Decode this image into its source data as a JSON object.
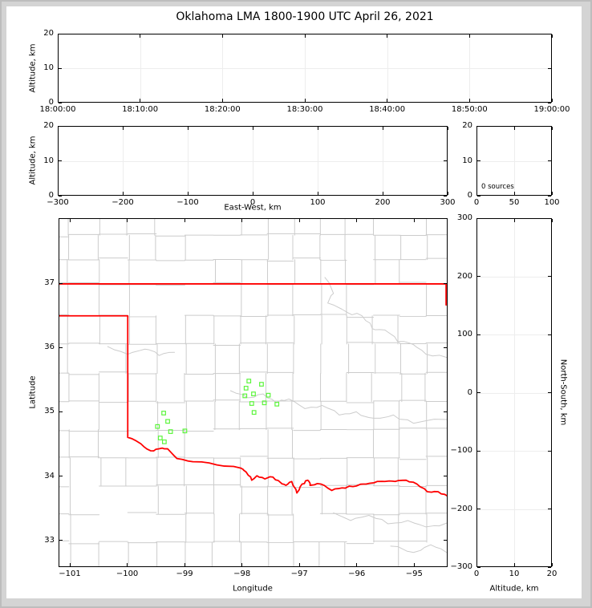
{
  "title": "Oklahoma LMA 1800-1900 UTC April 26, 2021",
  "colors": {
    "state_border": "#ff0000",
    "county": "#cccccc",
    "station": "#5cf53c",
    "grid": "#ededed",
    "frame": "#bdbdbd",
    "window_bg": "#d4d4d4",
    "canvas_bg": "#ffffff"
  },
  "panels": {
    "time_altitude": {
      "ylabel": "Altitude, km",
      "xlim": [
        0,
        60
      ],
      "ylim": [
        0,
        20
      ],
      "xtick_vals": [
        0,
        10,
        20,
        30,
        40,
        50,
        60
      ],
      "xtick_labels": [
        "18:00:00",
        "18:10:00",
        "18:20:00",
        "18:30:00",
        "18:40:00",
        "18:50:00",
        "19:00:00"
      ],
      "ytick_vals": [
        0,
        10,
        20
      ],
      "ytick_labels": [
        "0",
        "10",
        "20"
      ],
      "grid": true
    },
    "ew_altitude": {
      "xlabel": "East-West, km",
      "ylabel": "Altitude, km",
      "xlim": [
        -300,
        300
      ],
      "ylim": [
        0,
        20
      ],
      "xtick_vals": [
        -300,
        -200,
        -100,
        0,
        100,
        200,
        300
      ],
      "xtick_labels": [
        "−300",
        "−200",
        "−100",
        "0",
        "100",
        "200",
        "300"
      ],
      "ytick_vals": [
        0,
        10,
        20
      ],
      "ytick_labels": [
        "0",
        "10",
        "20"
      ],
      "grid": true
    },
    "alt_histogram": {
      "annotation": "0 sources",
      "xlim": [
        0,
        100
      ],
      "ylim": [
        0,
        20
      ],
      "xtick_vals": [
        0,
        50,
        100
      ],
      "xtick_labels": [
        "0",
        "50",
        "100"
      ],
      "ytick_vals": [
        0,
        10,
        20
      ],
      "ytick_labels": [
        "0",
        "10",
        "20"
      ],
      "grid": true
    },
    "map": {
      "xlabel": "Longitude",
      "ylabel": "Latitude",
      "xlim": [
        -101.196,
        -94.417
      ],
      "ylim": [
        32.584,
        38.015
      ],
      "xtick_vals": [
        -101,
        -100,
        -99,
        -98,
        -97,
        -96,
        -95
      ],
      "xtick_labels": [
        "−101",
        "−100",
        "−99",
        "−98",
        "−97",
        "−96",
        "−95"
      ],
      "ytick_vals": [
        37,
        36,
        35,
        34,
        33
      ],
      "ytick_labels": [
        "37",
        "36",
        "35",
        "34",
        "33"
      ],
      "grid": false
    },
    "ns_altitude": {
      "xlabel": "Altitude, km",
      "ylabel_right": "North-South, km",
      "xlim": [
        0,
        20
      ],
      "ylim": [
        -300,
        300
      ],
      "xtick_vals": [
        0,
        10,
        20
      ],
      "xtick_labels": [
        "0",
        "10",
        "20"
      ],
      "ytick_vals": [
        300,
        200,
        100,
        0,
        -100,
        -200,
        -300
      ],
      "ytick_labels": [
        "300",
        "200",
        "100",
        "0",
        "−100",
        "−200",
        "−300"
      ],
      "grid": true
    }
  },
  "map_geo": {
    "county_color": "#cccccc",
    "county_lat_lines": [
      37.76,
      37.38,
      37.0,
      36.5,
      36.06,
      35.6,
      35.16,
      34.72,
      34.28,
      33.84,
      33.4,
      32.96
    ],
    "county_lon_lines": [
      -101.03,
      -100.5,
      -100.0,
      -99.5,
      -99.0,
      -98.5,
      -98.03,
      -97.56,
      -97.1,
      -96.63,
      -96.17,
      -95.7,
      -95.24,
      -94.78
    ],
    "state_border": [
      [
        [
          -101.196,
          37.0
        ],
        [
          -94.417,
          37.0
        ]
      ],
      [
        [
          -94.43,
          37.0
        ],
        [
          -94.43,
          36.67
        ]
      ],
      [
        [
          -101.196,
          36.5
        ],
        [
          -100.0,
          36.5
        ]
      ],
      [
        [
          -100.0,
          36.5
        ],
        [
          -100.0,
          34.6
        ]
      ]
    ],
    "red_river": [
      [
        -100.0,
        34.6
      ],
      [
        -99.77,
        34.5
      ],
      [
        -99.6,
        34.39
      ],
      [
        -99.46,
        34.42
      ],
      [
        -99.3,
        34.42
      ],
      [
        -99.14,
        34.27
      ],
      [
        -98.86,
        34.22
      ],
      [
        -98.44,
        34.17
      ],
      [
        -98.02,
        34.12
      ],
      [
        -97.93,
        34.06
      ],
      [
        -97.83,
        33.93
      ],
      [
        -97.74,
        34.0
      ],
      [
        -97.6,
        33.95
      ],
      [
        -97.46,
        33.98
      ],
      [
        -97.32,
        33.89
      ],
      [
        -97.23,
        33.85
      ],
      [
        -97.13,
        33.91
      ],
      [
        -97.04,
        33.73
      ],
      [
        -96.95,
        33.87
      ],
      [
        -96.85,
        33.93
      ],
      [
        -96.81,
        33.85
      ],
      [
        -96.62,
        33.87
      ],
      [
        -96.43,
        33.77
      ],
      [
        -96.25,
        33.81
      ],
      [
        -96.06,
        33.83
      ],
      [
        -95.88,
        33.87
      ],
      [
        -95.69,
        33.89
      ],
      [
        -95.5,
        33.91
      ],
      [
        -95.32,
        33.91
      ],
      [
        -95.13,
        33.93
      ],
      [
        -94.94,
        33.87
      ],
      [
        -94.76,
        33.75
      ],
      [
        -94.57,
        33.75
      ],
      [
        -94.4,
        33.68
      ]
    ],
    "rivers": [
      [
        [
          -96.55,
          37.1
        ],
        [
          -96.4,
          36.85
        ],
        [
          -96.5,
          36.7
        ],
        [
          -96.15,
          36.55
        ],
        [
          -95.9,
          36.5
        ],
        [
          -95.72,
          36.3
        ],
        [
          -95.5,
          36.28
        ],
        [
          -95.28,
          36.1
        ],
        [
          -95.0,
          36.05
        ],
        [
          -94.78,
          35.9
        ],
        [
          -94.42,
          35.85
        ]
      ],
      [
        [
          -98.2,
          35.33
        ],
        [
          -97.9,
          35.22
        ],
        [
          -97.63,
          35.28
        ],
        [
          -97.4,
          35.14
        ],
        [
          -97.18,
          35.2
        ],
        [
          -96.9,
          35.05
        ],
        [
          -96.6,
          35.1
        ],
        [
          -96.3,
          34.95
        ],
        [
          -96.0,
          35.0
        ],
        [
          -95.7,
          34.9
        ],
        [
          -95.35,
          34.95
        ],
        [
          -95.0,
          34.82
        ],
        [
          -94.42,
          34.88
        ]
      ],
      [
        [
          -100.35,
          36.02
        ],
        [
          -100.0,
          35.9
        ],
        [
          -99.7,
          35.98
        ],
        [
          -99.45,
          35.88
        ],
        [
          -99.18,
          35.93
        ]
      ],
      [
        [
          -96.4,
          33.42
        ],
        [
          -96.1,
          33.3
        ],
        [
          -95.78,
          33.38
        ],
        [
          -95.45,
          33.25
        ],
        [
          -95.1,
          33.3
        ],
        [
          -94.78,
          33.2
        ],
        [
          -94.42,
          33.26
        ]
      ],
      [
        [
          -95.4,
          32.9
        ],
        [
          -95.0,
          32.8
        ],
        [
          -94.7,
          32.92
        ],
        [
          -94.42,
          32.8
        ]
      ]
    ]
  },
  "chart_data": [
    {
      "id": "time-altitude",
      "type": "scatter",
      "xlabel": "",
      "ylabel": "Altitude, km",
      "xtick_labels": [
        "18:00:00",
        "18:10:00",
        "18:20:00",
        "18:30:00",
        "18:40:00",
        "18:50:00",
        "19:00:00"
      ],
      "ylim": [
        0,
        20
      ],
      "yticks": [
        0,
        10,
        20
      ],
      "points": []
    },
    {
      "id": "ew-altitude",
      "type": "scatter",
      "xlabel": "East-West, km",
      "ylabel": "Altitude, km",
      "xlim": [
        -300,
        300
      ],
      "xticks": [
        -300,
        -200,
        -100,
        0,
        100,
        200,
        300
      ],
      "ylim": [
        0,
        20
      ],
      "yticks": [
        0,
        10,
        20
      ],
      "points": []
    },
    {
      "id": "altitude-histogram",
      "type": "line",
      "xlabel": "",
      "ylabel": "",
      "xlim": [
        0,
        100
      ],
      "xticks": [
        0,
        50,
        100
      ],
      "ylim": [
        0,
        20
      ],
      "yticks": [
        0,
        10,
        20
      ],
      "annotation": "0 sources",
      "source_count": 0,
      "points": []
    },
    {
      "id": "plan-view-map",
      "type": "scatter",
      "xlabel": "Longitude",
      "ylabel": "Latitude",
      "xlim": [
        -101.196,
        -94.417
      ],
      "xticks": [
        -101,
        -100,
        -99,
        -98,
        -97,
        -96,
        -95
      ],
      "ylim": [
        32.584,
        38.015
      ],
      "yticks": [
        33,
        34,
        35,
        36,
        37
      ],
      "series": [
        {
          "name": "lma-stations",
          "marker": "open-square",
          "color": "#5cf53c",
          "points": [
            [
              -97.88,
              35.48
            ],
            [
              -97.66,
              35.43
            ],
            [
              -97.93,
              35.37
            ],
            [
              -97.8,
              35.28
            ],
            [
              -97.95,
              35.25
            ],
            [
              -97.54,
              35.26
            ],
            [
              -97.83,
              35.13
            ],
            [
              -97.61,
              35.14
            ],
            [
              -97.39,
              35.12
            ],
            [
              -97.79,
              34.99
            ],
            [
              -99.37,
              34.98
            ],
            [
              -99.3,
              34.85
            ],
            [
              -99.48,
              34.77
            ],
            [
              -99.25,
              34.69
            ],
            [
              -99.0,
              34.7
            ],
            [
              -99.43,
              34.59
            ],
            [
              -99.36,
              34.53
            ]
          ]
        }
      ]
    },
    {
      "id": "ns-altitude",
      "type": "scatter",
      "xlabel": "Altitude, km",
      "ylabel": "North-South, km",
      "xlim": [
        0,
        20
      ],
      "xticks": [
        0,
        10,
        20
      ],
      "ylim": [
        -300,
        300
      ],
      "yticks": [
        -300,
        -200,
        -100,
        0,
        100,
        200,
        300
      ],
      "points": []
    }
  ]
}
